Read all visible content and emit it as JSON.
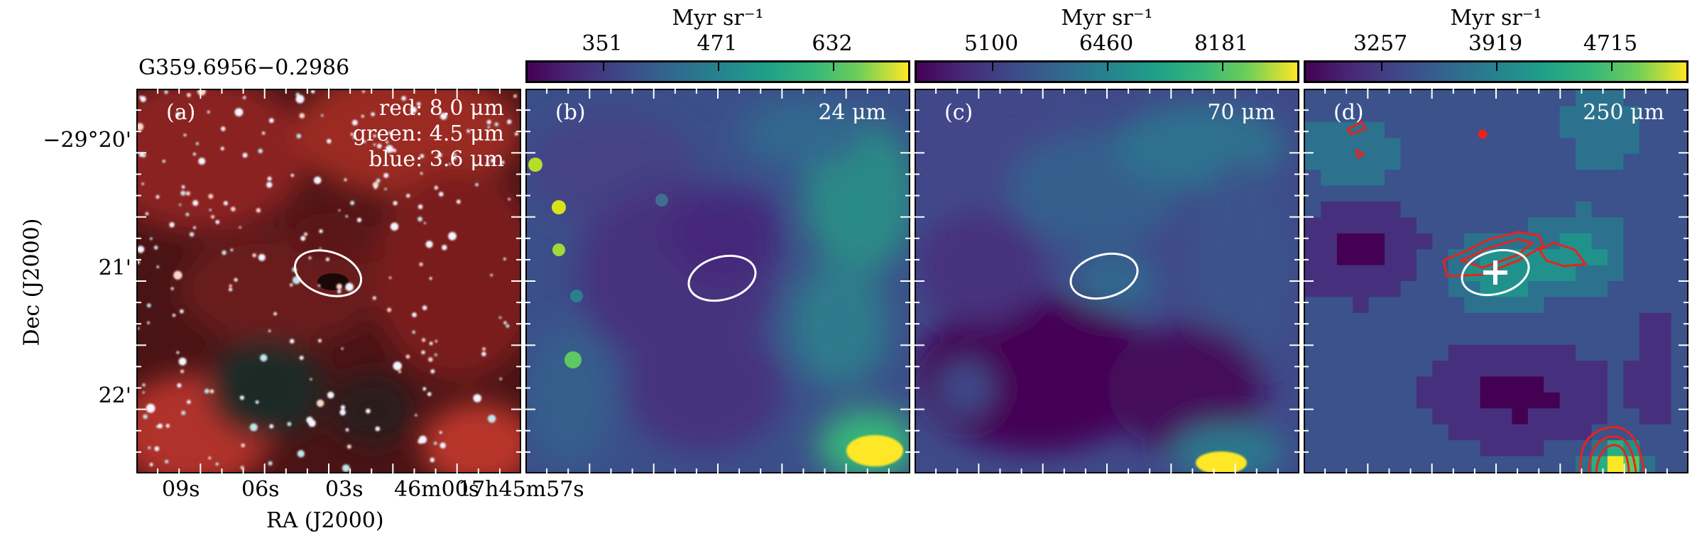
{
  "source_name": "G359.6956−0.2986",
  "colorbars": [
    {
      "title": "Myr sr⁻¹",
      "ticks": [
        "351",
        "471",
        "632"
      ]
    },
    {
      "title": "Myr sr⁻¹",
      "ticks": [
        "5100",
        "6460",
        "8181"
      ]
    },
    {
      "title": "Myr sr⁻¹",
      "ticks": [
        "3257",
        "3919",
        "4715"
      ]
    }
  ],
  "panels": [
    {
      "letter": "(a)",
      "legend": [
        "red: 8.0 μm",
        "green: 4.5 μm",
        "blue: 3.6 μm"
      ]
    },
    {
      "letter": "(b)",
      "band": "24 μm"
    },
    {
      "letter": "(c)",
      "band": "70 μm"
    },
    {
      "letter": "(d)",
      "band": "250 μm"
    }
  ],
  "axes": {
    "ylabel": "Dec (J2000)",
    "xlabel": "RA (J2000)",
    "yticks": [
      "−29°20'",
      "21'",
      "22'"
    ],
    "xticks": [
      "09s",
      "06s",
      "03s",
      "46m00s",
      "17h45m57s"
    ]
  },
  "colors": {
    "contour": "#e8231c",
    "ellipse": "#ffffff",
    "viridis_low": "#440154",
    "viridis_high": "#fde725"
  }
}
